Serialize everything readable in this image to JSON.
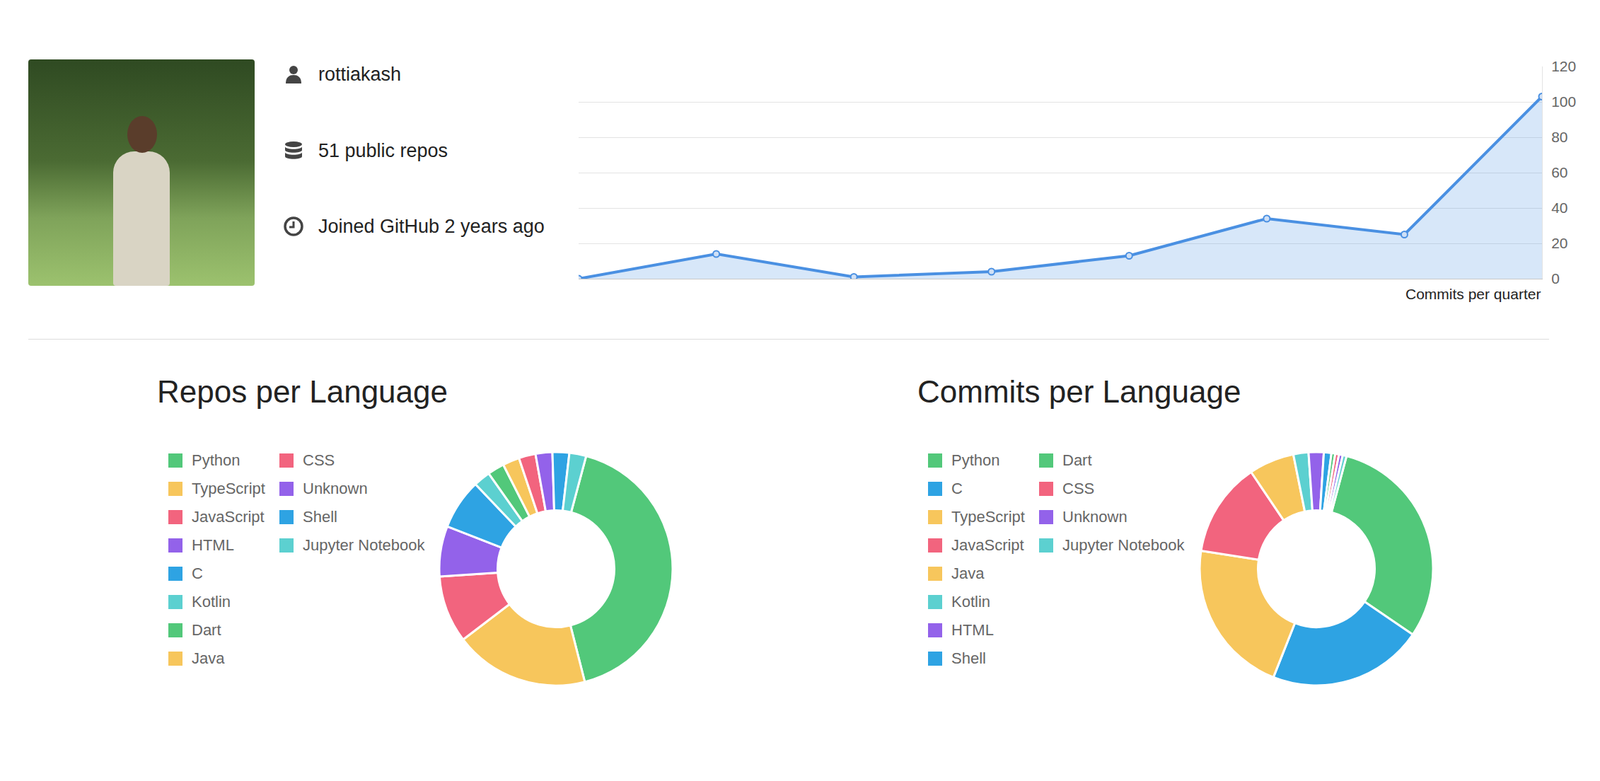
{
  "profile": {
    "username": "rottiakash",
    "repos": "51 public repos",
    "joined": "Joined GitHub 2 years ago"
  },
  "chart_data": [
    {
      "type": "line",
      "xlabel": "Commits per quarter",
      "categories": [
        null,
        null,
        null,
        null,
        null,
        null,
        null,
        null
      ],
      "values": [
        0,
        14,
        1,
        4,
        13,
        34,
        25,
        103
      ],
      "color": "#4a90e2",
      "marker": "circle",
      "ylim": [
        0,
        120
      ],
      "yticks": [
        0,
        20,
        40,
        60,
        80,
        100,
        120
      ],
      "grid": true,
      "tick_labels": "y"
    },
    {
      "type": "pie",
      "title": "Repos per Language",
      "legend": "left",
      "categories": [
        "Python",
        "TypeScript",
        "JavaScript",
        "HTML",
        "C",
        "Kotlin",
        "Dart",
        "Java",
        "CSS",
        "Unknown",
        "Shell",
        "Jupyter Notebook"
      ],
      "values": [
        18,
        8,
        4,
        3,
        3,
        1,
        1,
        1,
        1,
        1,
        1,
        1
      ],
      "colors": [
        "#52c87a",
        "#f7c65c",
        "#f2647e",
        "#9362ea",
        "#2ea3e3",
        "#5cd0d0",
        "#52c87a",
        "#f7c65c",
        "#f2647e",
        "#9362ea",
        "#2ea3e3",
        "#5cd0d0"
      ]
    },
    {
      "type": "pie",
      "title": "Commits per Language",
      "legend": "left",
      "categories": [
        "Python",
        "C",
        "TypeScript",
        "JavaScript",
        "Java",
        "Kotlin",
        "HTML",
        "Shell",
        "Dart",
        "CSS",
        "Unknown",
        "Jupyter Notebook"
      ],
      "values": [
        58,
        41,
        41,
        25,
        12,
        4,
        4,
        2,
        1,
        1,
        1,
        1
      ],
      "colors": [
        "#52c87a",
        "#2ea3e3",
        "#f7c65c",
        "#f2647e",
        "#f7c65c",
        "#5cd0d0",
        "#9362ea",
        "#2ea3e3",
        "#52c87a",
        "#f2647e",
        "#9362ea",
        "#5cd0d0"
      ]
    }
  ]
}
